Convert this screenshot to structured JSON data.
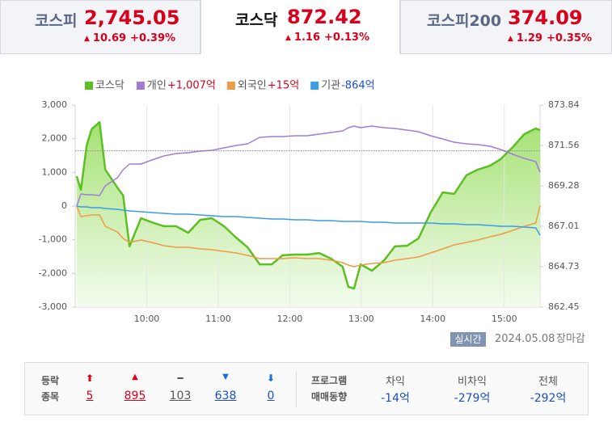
{
  "tabs": [
    {
      "name": "코스피",
      "value": "2,745.05",
      "change": "10.69",
      "rate": "+0.39%"
    },
    {
      "name": "코스닥",
      "value": "872.42",
      "change": "1.16",
      "rate": "+0.13%"
    },
    {
      "name": "코스피200",
      "value": "374.09",
      "change": "1.29",
      "rate": "+0.35%"
    }
  ],
  "chart_data": {
    "type": "line",
    "x": [
      9.02,
      9.08,
      9.16,
      9.23,
      9.34,
      9.42,
      9.59,
      9.67,
      9.76,
      9.92,
      10.07,
      10.24,
      10.41,
      10.58,
      10.75,
      10.91,
      11.08,
      11.25,
      11.41,
      11.58,
      11.75,
      11.9,
      12.07,
      12.24,
      12.41,
      12.58,
      12.74,
      12.82,
      12.9,
      12.99,
      13.15,
      13.32,
      13.47,
      13.64,
      13.8,
      13.97,
      14.14,
      14.3,
      14.47,
      14.63,
      14.8,
      14.95,
      15.12,
      15.28,
      15.44,
      15.5
    ],
    "xlim": [
      9,
      15.5
    ],
    "xticks": [
      {
        "value": 10,
        "label": "10:00"
      },
      {
        "value": 11,
        "label": "11:00"
      },
      {
        "value": 12,
        "label": "12:00"
      },
      {
        "value": 13,
        "label": "13:00"
      },
      {
        "value": 14,
        "label": "14:00"
      },
      {
        "value": 15,
        "label": "15:00"
      }
    ],
    "ylim": [
      -3000,
      3000
    ],
    "yticks": [
      {
        "value": 3000,
        "label": "3,000"
      },
      {
        "value": 2000,
        "label": "2,000"
      },
      {
        "value": 1000,
        "label": "1,000"
      },
      0,
      {
        "value": -1000,
        "label": "-1,000"
      },
      {
        "value": -2000,
        "label": "-2,000"
      },
      {
        "value": -3000,
        "label": "-3,000"
      }
    ],
    "y2lim": [
      862.45,
      873.84
    ],
    "y2ticks": [
      873.84,
      871.56,
      869.28,
      867.01,
      864.73,
      862.45
    ],
    "reference_line_y2": 871.26,
    "grid": true,
    "series": [
      {
        "name": "코스닥",
        "color": "#5cbf22",
        "axis": "y2",
        "fill": true,
        "values": [
          869.83,
          869.06,
          871.56,
          872.47,
          872.88,
          870.2,
          869.19,
          868.74,
          865.87,
          867.46,
          867.23,
          867.01,
          867.01,
          866.64,
          867.37,
          867.46,
          867.01,
          866.37,
          865.82,
          864.86,
          864.86,
          865.37,
          865.41,
          865.41,
          865.5,
          865.18,
          864.73,
          863.59,
          863.5,
          864.86,
          864.5,
          865.09,
          865.87,
          865.91,
          866.32,
          867.78,
          868.92,
          868.83,
          869.88,
          870.2,
          870.42,
          870.79,
          871.47,
          872.2,
          872.52,
          872.42
        ]
      },
      {
        "name": "개인",
        "color": "#a27bd9",
        "legend_value": "+1,007억",
        "legend_value_color": "#d0021b",
        "values": [
          0,
          360,
          336,
          336,
          312,
          600,
          840,
          1080,
          1248,
          1248,
          1368,
          1488,
          1560,
          1584,
          1632,
          1656,
          1728,
          1800,
          1848,
          2040,
          2064,
          2064,
          2088,
          2088,
          2136,
          2184,
          2232,
          2328,
          2376,
          2328,
          2376,
          2328,
          2304,
          2256,
          2208,
          2088,
          1992,
          1896,
          1848,
          1824,
          1776,
          1680,
          1536,
          1416,
          1320,
          1007
        ]
      },
      {
        "name": "외국인",
        "color": "#f09a45",
        "legend_value": "+15억",
        "legend_value_color": "#d0021b",
        "values": [
          0,
          -312,
          -288,
          -264,
          -264,
          -600,
          -768,
          -960,
          -1080,
          -1008,
          -1080,
          -1176,
          -1224,
          -1224,
          -1272,
          -1296,
          -1344,
          -1392,
          -1464,
          -1560,
          -1560,
          -1560,
          -1536,
          -1560,
          -1560,
          -1608,
          -1680,
          -1752,
          -1800,
          -1752,
          -1704,
          -1680,
          -1608,
          -1560,
          -1512,
          -1392,
          -1272,
          -1152,
          -1080,
          -1008,
          -912,
          -840,
          -720,
          -600,
          -504,
          15
        ]
      },
      {
        "name": "기관",
        "color": "#3b9ce8",
        "legend_value": "-864억",
        "legend_value_color": "#1a4fc4",
        "values": [
          0,
          -24,
          -24,
          -48,
          -48,
          -72,
          -96,
          -120,
          -144,
          -168,
          -192,
          -216,
          -240,
          -240,
          -264,
          -288,
          -312,
          -312,
          -336,
          -360,
          -384,
          -384,
          -408,
          -408,
          -432,
          -432,
          -456,
          -456,
          -456,
          -456,
          -480,
          -480,
          -504,
          -504,
          -504,
          -504,
          -528,
          -528,
          -552,
          -552,
          -576,
          -600,
          -600,
          -624,
          -648,
          -864
        ]
      }
    ]
  },
  "status": {
    "badge": "실시간",
    "date": "2024.05.08",
    "state": "장마감"
  },
  "breadth": {
    "label": [
      "등락",
      "종목"
    ],
    "counts": [
      "5",
      "895",
      "103",
      "638",
      "0"
    ]
  },
  "program": {
    "label": [
      "프로그램",
      "매매동향"
    ],
    "columns": [
      {
        "name": "차익",
        "value": "-14억"
      },
      {
        "name": "비차익",
        "value": "-279억"
      },
      {
        "name": "전체",
        "value": "-292억"
      }
    ]
  }
}
